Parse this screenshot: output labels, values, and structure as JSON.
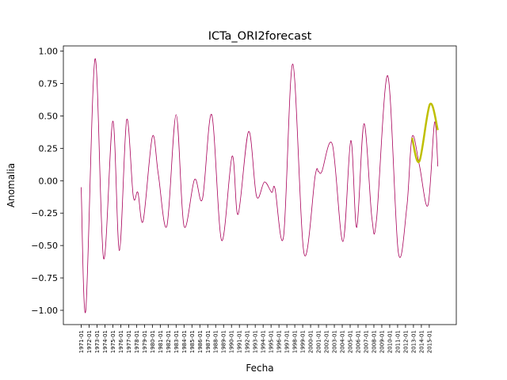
{
  "chart_data": {
    "type": "line",
    "title": "ICTa_ORI2forecast",
    "x_label": "Fecha",
    "y_label": "Anomalia",
    "xlim": [
      "1968-10",
      "2018-06"
    ],
    "xticks": [
      "1971-01",
      "1972-01",
      "1973-01",
      "1974-01",
      "1975-01",
      "1976-01",
      "1977-01",
      "1978-01",
      "1979-01",
      "1980-01",
      "1981-01",
      "1982-01",
      "1983-01",
      "1984-01",
      "1985-01",
      "1986-01",
      "1987-01",
      "1988-01",
      "1989-01",
      "1990-01",
      "1991-01",
      "1992-01",
      "1993-01",
      "1994-01",
      "1995-01",
      "1996-01",
      "1997-01",
      "1998-01",
      "1999-01",
      "2000-01",
      "2001-01",
      "2002-01",
      "2003-01",
      "2004-01",
      "2005-01",
      "2006-01",
      "2007-01",
      "2008-01",
      "2009-01",
      "2010-01",
      "2011-01",
      "2012-01",
      "2013-01",
      "2014-01",
      "2015-01"
    ],
    "ylim": [
      -1.11,
      1.04
    ],
    "yticks": [
      {
        "value": -1,
        "label": "−1.00"
      },
      {
        "value": -0.75,
        "label": "−0.75"
      },
      {
        "value": -0.5,
        "label": "−0.50"
      },
      {
        "value": -0.25,
        "label": "−0.25"
      },
      {
        "value": 0,
        "label": "0.00"
      },
      {
        "value": 0.25,
        "label": "0.25"
      },
      {
        "value": 0.5,
        "label": "0.50"
      },
      {
        "value": 0.75,
        "label": "0.75"
      },
      {
        "value": 1,
        "label": "1.00"
      }
    ],
    "series": [
      {
        "color": "#a8005a",
        "width": 0.8,
        "x": [
          "1971-01",
          "1971-08",
          "1972-10",
          "1973-11",
          "1975-01",
          "1975-11",
          "1976-10",
          "1977-08",
          "1978-03",
          "1978-11",
          "1980-01",
          "1980-10",
          "1981-11",
          "1983-01",
          "1984-01",
          "1985-05",
          "1986-05",
          "1987-07",
          "1988-10",
          "1990-02",
          "1990-11",
          "1992-03",
          "1993-03",
          "1994-03",
          "1995-02",
          "1995-07",
          "1996-08",
          "1997-10",
          "1999-03",
          "2000-08",
          "2001-01",
          "2001-06",
          "2002-10",
          "2004-02",
          "2005-02",
          "2005-11",
          "2006-10",
          "2007-10",
          "2008-05",
          "2009-10",
          "2011-02",
          "2012-03",
          "2012-11",
          "2013-10",
          "2014-11",
          "2015-09",
          "2016-02"
        ],
        "values": [
          -0.05,
          -1.0,
          0.94,
          -0.6,
          0.46,
          -0.54,
          0.47,
          -0.12,
          -0.09,
          -0.31,
          0.34,
          0.05,
          -0.35,
          0.51,
          -0.35,
          0.01,
          -0.14,
          0.51,
          -0.46,
          0.19,
          -0.26,
          0.38,
          -0.12,
          -0.01,
          -0.09,
          -0.06,
          -0.43,
          0.9,
          -0.56,
          0.04,
          0.07,
          0.07,
          0.28,
          -0.47,
          0.31,
          -0.36,
          0.44,
          -0.29,
          -0.3,
          0.81,
          -0.55,
          -0.2,
          0.34,
          0.12,
          -0.19,
          0.45,
          0.11
        ]
      },
      {
        "color": "#bfbf00",
        "width": 2.5,
        "x": [
          "2012-11",
          "2013-10",
          "2015-02",
          "2016-02"
        ],
        "values": [
          0.33,
          0.15,
          0.59,
          0.39
        ]
      }
    ]
  }
}
